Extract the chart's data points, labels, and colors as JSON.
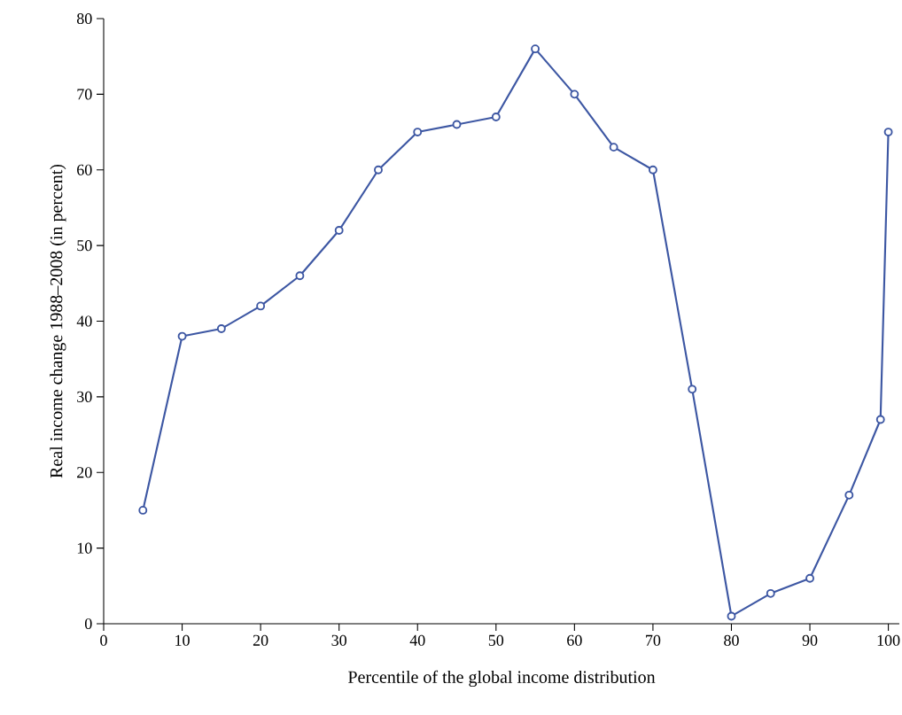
{
  "chart_data": {
    "type": "line",
    "xlabel": "Percentile of the global income distribution",
    "ylabel": "Real income change 1988–2008 (in percent)",
    "x": [
      5,
      10,
      15,
      20,
      25,
      30,
      35,
      40,
      45,
      50,
      55,
      60,
      65,
      70,
      75,
      80,
      85,
      90,
      95,
      99,
      100
    ],
    "values": [
      15,
      38,
      39,
      42,
      46,
      52,
      60,
      65,
      66,
      67,
      76,
      70,
      63,
      60,
      31,
      1,
      4,
      6,
      17,
      27,
      65
    ],
    "color": "#3d57a3",
    "marker": "circle",
    "line_style": "solid",
    "grid": false,
    "xlim": [
      0,
      101.4
    ],
    "ylim": [
      0,
      80
    ],
    "xticks": [
      0,
      10,
      20,
      30,
      40,
      50,
      60,
      70,
      80,
      90,
      100
    ],
    "yticks": [
      0,
      10,
      20,
      30,
      40,
      50,
      60,
      70,
      80
    ]
  }
}
